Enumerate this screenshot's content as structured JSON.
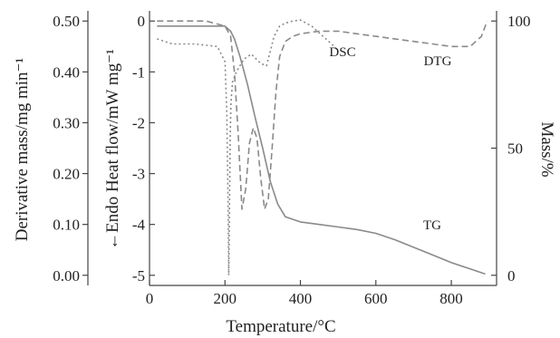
{
  "chart_data": {
    "type": "line",
    "xlabel": "Temperature/°C",
    "x_range": [
      0,
      920
    ],
    "x_ticks": [
      "0",
      "200",
      "400",
      "600",
      "800"
    ],
    "y_left_outer": {
      "label": "Derivative mass/mg min⁻¹",
      "range": [
        -0.02,
        0.52
      ],
      "ticks": [
        "0.00",
        "0.10",
        "0.20",
        "0.30",
        "0.40",
        "0.50"
      ]
    },
    "y_left_inner": {
      "label": "←Endo Heat flow/mW mg⁻¹",
      "range": [
        -5.2,
        0.2
      ],
      "ticks": [
        "-5",
        "-4",
        "-3",
        "-2",
        "-1",
        "0"
      ]
    },
    "y_right": {
      "label": "Mass/%",
      "range": [
        -4,
        104
      ],
      "ticks": [
        "0",
        "50",
        "100"
      ]
    },
    "series": [
      {
        "name": "TG",
        "axis": "right",
        "style": "solid",
        "color": "#8a8a8a",
        "x": [
          20,
          100,
          150,
          200,
          215,
          225,
          240,
          260,
          280,
          300,
          320,
          340,
          360,
          400,
          450,
          500,
          550,
          600,
          650,
          700,
          750,
          800,
          850,
          890
        ],
        "y": [
          98,
          98,
          98,
          98,
          96,
          93,
          86,
          75,
          62,
          50,
          37,
          28,
          23,
          21,
          20,
          19,
          18,
          16.5,
          14,
          11,
          8,
          5,
          2.5,
          0.5
        ]
      },
      {
        "name": "DTG",
        "axis": "left_outer",
        "style": "dashed",
        "color": "#8a8a8a",
        "x": [
          20,
          100,
          150,
          200,
          215,
          225,
          235,
          245,
          255,
          265,
          275,
          285,
          295,
          305,
          315,
          325,
          335,
          345,
          360,
          380,
          400,
          450,
          500,
          550,
          600,
          650,
          700,
          750,
          800,
          850,
          880,
          895
        ],
        "y": [
          0.5,
          0.5,
          0.5,
          0.49,
          0.47,
          0.4,
          0.28,
          0.13,
          0.17,
          0.26,
          0.29,
          0.27,
          0.19,
          0.13,
          0.15,
          0.25,
          0.36,
          0.43,
          0.46,
          0.47,
          0.475,
          0.48,
          0.48,
          0.475,
          0.47,
          0.465,
          0.46,
          0.455,
          0.45,
          0.45,
          0.47,
          0.5
        ]
      },
      {
        "name": "DSC",
        "axis": "left_inner",
        "style": "dotted",
        "color": "#8a8a8a",
        "x": [
          20,
          60,
          120,
          180,
          200,
          205,
          208,
          210,
          212,
          214,
          216,
          220,
          230,
          250,
          270,
          290,
          300,
          310,
          320,
          330,
          345,
          360,
          380,
          400,
          430,
          460,
          490,
          500
        ],
        "y": [
          -0.35,
          -0.45,
          -0.45,
          -0.5,
          -0.8,
          -1.8,
          -3.5,
          -5.0,
          -3.5,
          -2.2,
          -1.6,
          -1.2,
          -1.0,
          -0.75,
          -0.65,
          -0.8,
          -0.85,
          -0.88,
          -0.6,
          -0.3,
          -0.1,
          -0.04,
          0.0,
          0.02,
          -0.1,
          -0.3,
          -0.5,
          -0.6
        ]
      }
    ],
    "annotations": [
      "DSC",
      "DTG",
      "TG"
    ]
  }
}
